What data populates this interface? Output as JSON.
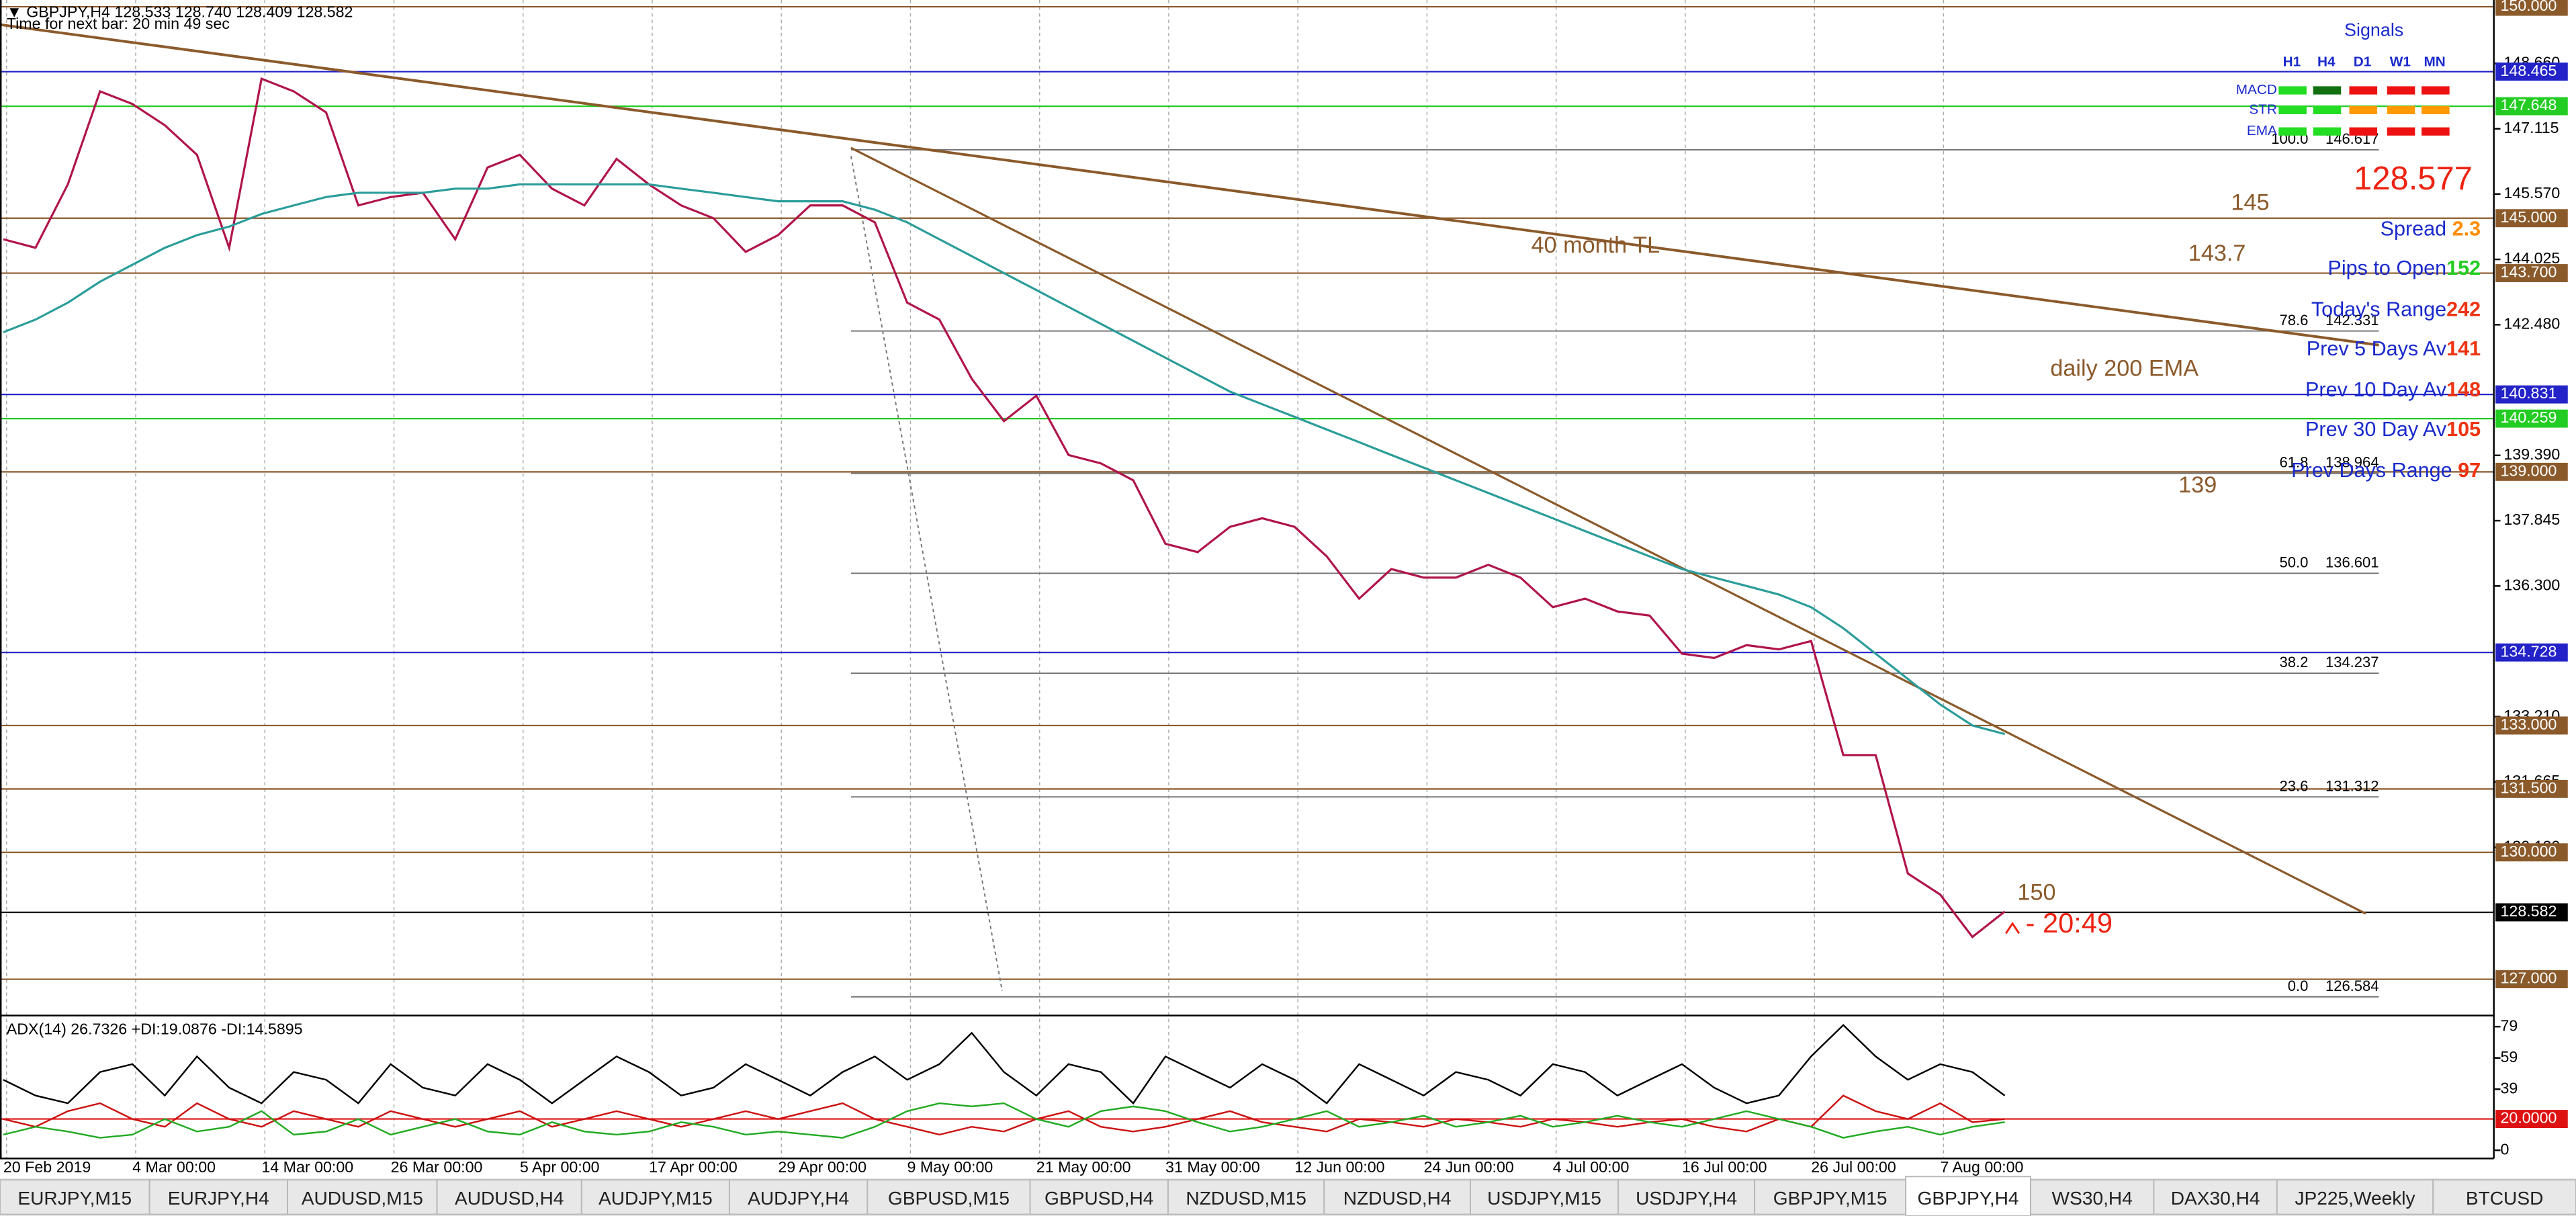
{
  "chart_data": [
    {
      "type": "line",
      "title": "▼ GBPJPY,H4  128.533 128.740 128.409 128.582",
      "subtitle": "Time for next bar: 20 min 49 sec",
      "categories": [
        "20 Feb 2019",
        null,
        null,
        null,
        "4 Mar 00:00",
        null,
        null,
        null,
        "14 Mar 00:00",
        null,
        null,
        null,
        "26 Mar 00:00",
        null,
        null,
        null,
        "5 Apr 00:00",
        null,
        null,
        null,
        "17 Apr 00:00",
        null,
        null,
        null,
        "29 Apr 00:00",
        null,
        null,
        null,
        "9 May 00:00",
        null,
        null,
        null,
        "21 May 00:00",
        null,
        null,
        null,
        "31 May 00:00",
        null,
        null,
        null,
        "12 Jun 00:00",
        null,
        null,
        null,
        "24 Jun 00:00",
        null,
        null,
        null,
        "4 Jul 00:00",
        null,
        null,
        null,
        "16 Jul 00:00",
        null,
        null,
        null,
        "26 Jul 00:00",
        null,
        null,
        null,
        "7 Aug 00:00",
        null,
        null
      ],
      "series": [
        {
          "color": "#b0144a",
          "values": [
            144.5,
            144.3,
            145.8,
            148.0,
            147.7,
            147.2,
            146.5,
            144.3,
            148.3,
            148.0,
            147.5,
            145.3,
            145.5,
            145.6,
            144.5,
            146.2,
            146.5,
            145.7,
            145.3,
            146.4,
            145.8,
            145.3,
            145.0,
            144.2,
            144.6,
            145.3,
            145.3,
            144.9,
            143.0,
            142.6,
            141.2,
            140.2,
            140.8,
            139.4,
            139.2,
            138.8,
            137.3,
            137.1,
            137.7,
            137.9,
            137.7,
            137.0,
            136.0,
            136.7,
            136.5,
            136.5,
            136.8,
            136.5,
            135.8,
            136.0,
            135.7,
            135.6,
            134.7,
            134.6,
            134.9,
            134.8,
            135.0,
            132.3,
            132.3,
            129.5,
            129.0,
            128.0,
            128.6
          ]
        },
        {
          "color": "#2a9d9a",
          "values": [
            142.3,
            142.6,
            143.0,
            143.5,
            143.9,
            144.3,
            144.6,
            144.8,
            145.1,
            145.3,
            145.5,
            145.6,
            145.6,
            145.6,
            145.7,
            145.7,
            145.8,
            145.8,
            145.8,
            145.8,
            145.8,
            145.7,
            145.6,
            145.5,
            145.4,
            145.4,
            145.4,
            145.2,
            144.9,
            144.5,
            144.1,
            143.7,
            143.3,
            142.9,
            142.5,
            142.1,
            141.7,
            141.3,
            140.9,
            140.6,
            140.3,
            140.0,
            139.7,
            139.4,
            139.1,
            138.8,
            138.5,
            138.2,
            137.9,
            137.6,
            137.3,
            137.0,
            136.7,
            136.5,
            136.3,
            136.1,
            135.8,
            135.3,
            134.7,
            134.1,
            133.5,
            133.0,
            132.8
          ]
        }
      ],
      "ylim": [
        126.18,
        150.16
      ],
      "yticks": [
        {
          "value": 148.66,
          "label": "148.660"
        },
        {
          "value": 147.115,
          "label": "147.115"
        },
        {
          "value": 145.57,
          "label": "145.570"
        },
        {
          "value": 144.025,
          "label": "144.025"
        },
        {
          "value": 142.48,
          "label": "142.480"
        },
        {
          "value": 139.39,
          "label": "139.390"
        },
        {
          "value": 137.845,
          "label": "137.845"
        },
        {
          "value": 136.3,
          "label": "136.300"
        },
        {
          "value": 133.21,
          "label": "133.210"
        },
        {
          "value": 131.665,
          "label": "131.665"
        },
        {
          "value": 130.12,
          "label": "130.120"
        }
      ],
      "levels": [
        {
          "value": 150,
          "label": "150.000",
          "color": "#8b5a2b"
        },
        {
          "value": 148.465,
          "label": "148.465",
          "color": "#2323c8"
        },
        {
          "value": 147.648,
          "label": "147.648",
          "color": "#22cc22"
        },
        {
          "value": 145,
          "label": "145.000",
          "color": "#8b5a2b"
        },
        {
          "value": 143.7,
          "label": "143.700",
          "color": "#8b5a2b"
        },
        {
          "value": 140.831,
          "label": "140.831",
          "color": "#2323c8"
        },
        {
          "value": 140.259,
          "label": "140.259",
          "color": "#22cc22"
        },
        {
          "value": 139,
          "label": "139.000",
          "color": "#8b5a2b"
        },
        {
          "value": 134.728,
          "label": "134.728",
          "color": "#2323c8"
        },
        {
          "value": 133,
          "label": "133.000",
          "color": "#8b5a2b"
        },
        {
          "value": 131.5,
          "label": "131.500",
          "color": "#8b5a2b"
        },
        {
          "value": 130,
          "label": "130.000",
          "color": "#8b5a2b"
        },
        {
          "value": 128.582,
          "label": "128.582",
          "color": "#000000"
        },
        {
          "value": 127,
          "label": "127.000",
          "color": "#8b5a2b"
        }
      ],
      "fib": [
        {
          "label": "100.0",
          "value": 146.617
        },
        {
          "label": "78.6",
          "value": 142.331
        },
        {
          "label": "61.8",
          "value": 138.964
        },
        {
          "label": "50.0",
          "value": 136.601
        },
        {
          "label": "38.2",
          "value": 134.237
        },
        {
          "label": "23.6",
          "value": 131.312
        },
        {
          "label": "0.0",
          "value": 126.584
        }
      ],
      "annotations": [
        "40 month TL",
        "daily 200 EMA",
        "145",
        "143.7",
        "139",
        "150",
        "- 20:49"
      ],
      "bid": 128.577,
      "signals": {
        "title": "Signals",
        "columns": [
          "H1",
          "H4",
          "D1",
          "W1",
          "MN"
        ],
        "rows": [
          {
            "label": "MACD",
            "colors": [
              "#22dd22",
              "#107010",
              "#ee1111",
              "#ee1111",
              "#ee1111"
            ]
          },
          {
            "label": "STR",
            "colors": [
              "#22dd22",
              "#22dd22",
              "#ff9900",
              "#ff9900",
              "#ff9900"
            ]
          },
          {
            "label": "EMA",
            "colors": [
              "#22dd22",
              "#22dd22",
              "#ee1111",
              "#ee1111",
              "#ee1111"
            ]
          }
        ]
      },
      "info": [
        {
          "label": "Spread ",
          "value": 2.3,
          "color": "#ff8c00"
        },
        {
          "label": "Pips to Open",
          "value": 152,
          "color": "#22cc22"
        },
        {
          "label": "Today's Range",
          "value": 242,
          "color": "#ee3311"
        },
        {
          "label": "Prev 5 Days Av",
          "value": 141,
          "color": "#ee3311"
        },
        {
          "label": "Prev 10 Day Av",
          "value": 148,
          "color": "#ee3311"
        },
        {
          "label": "Prev 30 Day Av",
          "value": 105,
          "color": "#ee3311"
        },
        {
          "label": "Prev Days Range  ",
          "value": 97,
          "color": "#ee3311"
        }
      ]
    },
    {
      "type": "line",
      "title": "ADX(14) 26.7326 +DI:19.0876 -DI:14.5895",
      "series": [
        {
          "color": "#000000",
          "values": [
            45,
            35,
            30,
            50,
            55,
            35,
            60,
            40,
            30,
            50,
            45,
            30,
            55,
            40,
            35,
            55,
            45,
            30,
            45,
            60,
            50,
            35,
            40,
            55,
            45,
            35,
            50,
            60,
            45,
            55,
            75,
            50,
            35,
            55,
            50,
            30,
            60,
            50,
            40,
            55,
            45,
            30,
            55,
            45,
            35,
            50,
            45,
            35,
            55,
            50,
            35,
            45,
            55,
            40,
            30,
            35,
            60,
            80,
            60,
            45,
            55,
            50,
            35
          ]
        },
        {
          "color": "#cc1111",
          "values": [
            20,
            15,
            25,
            30,
            20,
            15,
            30,
            20,
            15,
            25,
            20,
            15,
            25,
            20,
            15,
            20,
            25,
            15,
            20,
            25,
            20,
            15,
            20,
            25,
            20,
            25,
            30,
            20,
            15,
            10,
            15,
            12,
            20,
            25,
            15,
            12,
            15,
            20,
            25,
            18,
            15,
            12,
            20,
            18,
            15,
            20,
            18,
            15,
            20,
            18,
            15,
            18,
            20,
            15,
            12,
            20,
            15,
            35,
            25,
            20,
            30,
            18,
            20
          ]
        },
        {
          "color": "#22aa22",
          "values": [
            10,
            15,
            12,
            8,
            10,
            20,
            12,
            15,
            25,
            10,
            12,
            20,
            10,
            15,
            20,
            12,
            10,
            18,
            12,
            10,
            12,
            18,
            15,
            10,
            12,
            10,
            8,
            15,
            25,
            30,
            28,
            30,
            20,
            15,
            25,
            28,
            25,
            18,
            12,
            15,
            20,
            25,
            15,
            18,
            22,
            15,
            18,
            22,
            15,
            18,
            22,
            18,
            15,
            20,
            25,
            20,
            15,
            8,
            12,
            15,
            10,
            15,
            18
          ]
        }
      ],
      "ylim": [
        0,
        84
      ],
      "yticks": [
        0,
        39,
        59,
        79
      ],
      "levels": [
        {
          "value": 20,
          "label": "20.0000",
          "color": "#dd1111"
        }
      ]
    }
  ],
  "tabs": [
    "EURJPY,M15",
    "EURJPY,H4",
    "AUDUSD,M15",
    "AUDUSD,H4",
    "AUDJPY,M15",
    "AUDJPY,H4",
    "GBPUSD,M15",
    "GBPUSD,H4",
    "NZDUSD,M15",
    "NZDUSD,H4",
    "USDJPY,M15",
    "USDJPY,H4",
    "GBPJPY,M15",
    "GBPJPY,H4",
    "WS30,H4",
    "DAX30,H4",
    "JP225,Weekly",
    "BTCUSD"
  ],
  "active_tab": "GBPJPY,H4"
}
